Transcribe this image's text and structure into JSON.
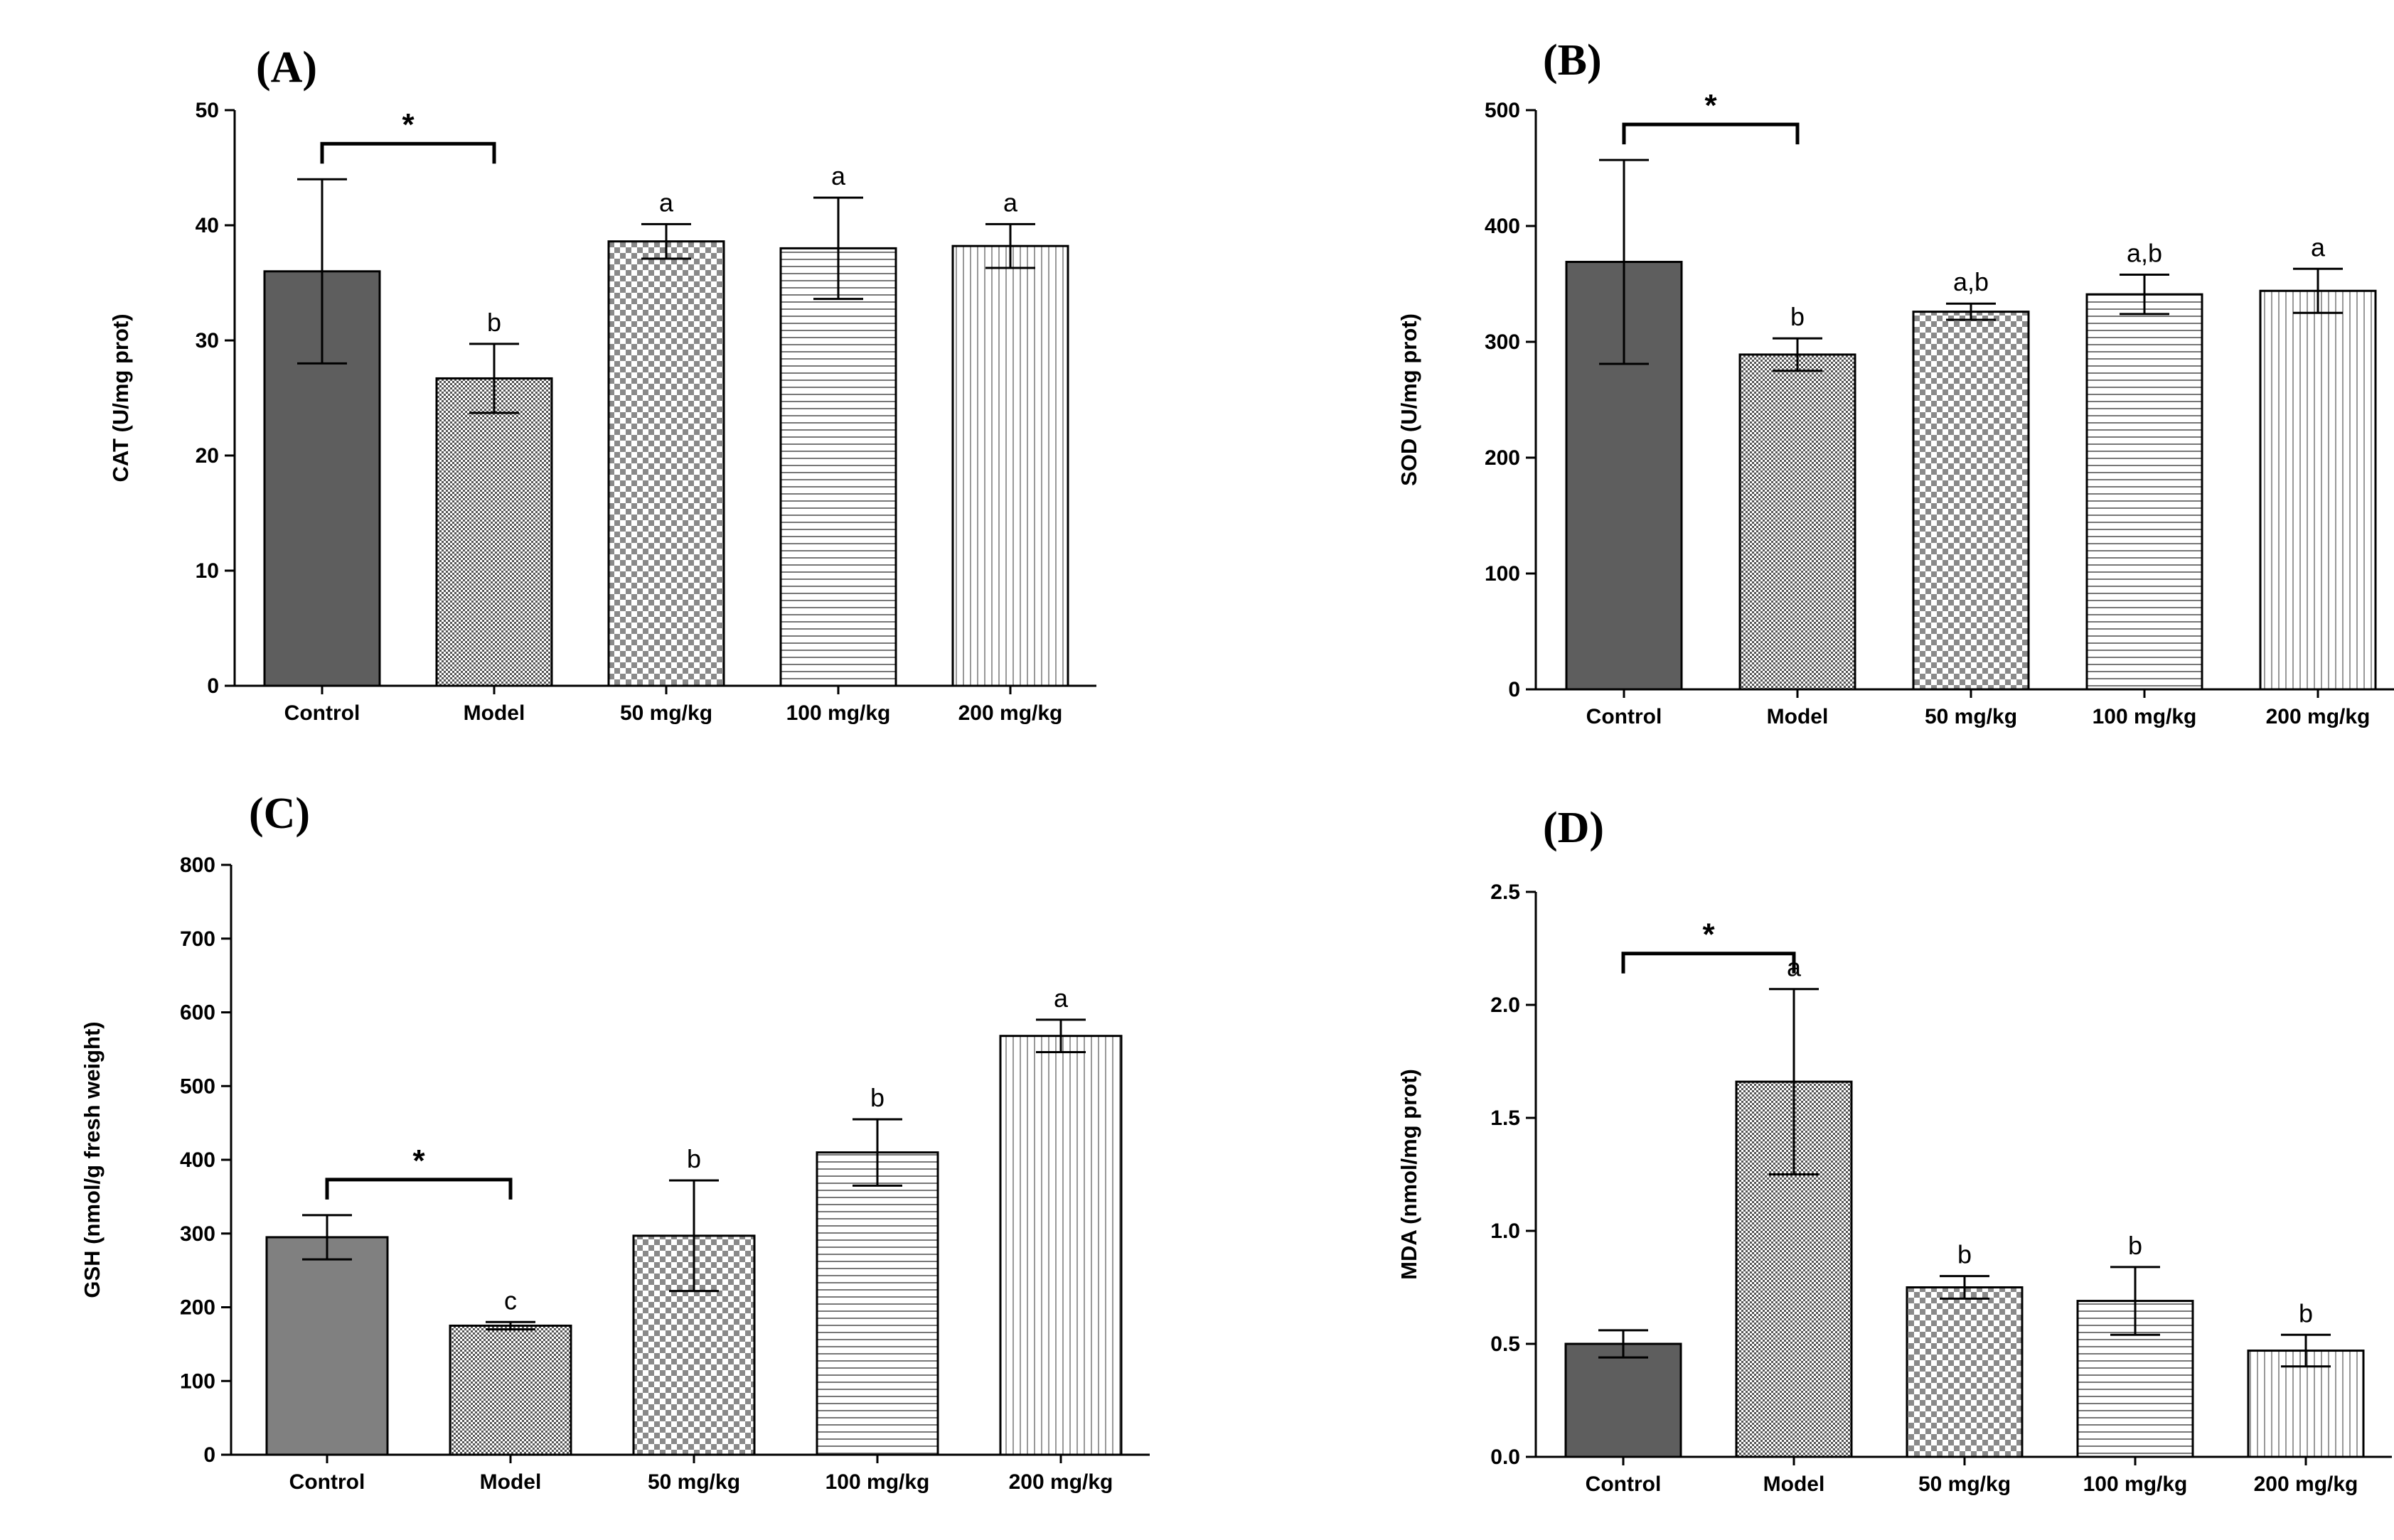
{
  "chart_data": [
    {
      "panel": "(A)",
      "type": "bar",
      "ylabel": "CAT (U/mg prot)",
      "categories": [
        "Control",
        "Model",
        "50 mg/kg",
        "100 mg/kg",
        "200 mg/kg"
      ],
      "values": [
        36,
        26.7,
        38.6,
        38,
        38.2
      ],
      "errors": [
        8,
        3,
        1.5,
        4.4,
        1.9
      ],
      "significance": [
        "",
        "b",
        "a",
        "a",
        "a"
      ],
      "comparison": {
        "from": 0,
        "to": 1,
        "label": "*"
      },
      "ylim": [
        0,
        50
      ],
      "yticks": [
        0,
        10,
        20,
        30,
        40,
        50
      ],
      "colors": {
        "control_fill": "#5e5e5e"
      }
    },
    {
      "panel": "(B)",
      "type": "bar",
      "ylabel": "SOD (U/mg prot)",
      "categories": [
        "Control",
        "Model",
        "50 mg/kg",
        "100 mg/kg",
        "200 mg/kg"
      ],
      "values": [
        369,
        289,
        326,
        341,
        344
      ],
      "errors": [
        88,
        14,
        7,
        17,
        19
      ],
      "significance": [
        "",
        "b",
        "a,b",
        "a,b",
        "a"
      ],
      "comparison": {
        "from": 0,
        "to": 1,
        "label": "*"
      },
      "ylim": [
        0,
        500
      ],
      "yticks": [
        0,
        100,
        200,
        300,
        400,
        500
      ],
      "colors": {
        "control_fill": "#5e5e5e"
      }
    },
    {
      "panel": "(C)",
      "type": "bar",
      "ylabel": "GSH (nmol/g fresh weight)",
      "categories": [
        "Control",
        "Model",
        "50 mg/kg",
        "100 mg/kg",
        "200 mg/kg"
      ],
      "values": [
        295,
        175,
        297,
        410,
        568
      ],
      "errors": [
        30,
        5,
        75,
        45,
        22
      ],
      "significance": [
        "",
        "c",
        "b",
        "b",
        "a"
      ],
      "comparison": {
        "from": 0,
        "to": 1,
        "label": "*"
      },
      "ylim": [
        0,
        800
      ],
      "yticks": [
        0,
        100,
        200,
        300,
        400,
        500,
        600,
        700,
        800
      ],
      "colors": {
        "control_fill": "#808080"
      }
    },
    {
      "panel": "(D)",
      "type": "bar",
      "ylabel": "MDA (nmol/mg prot)",
      "categories": [
        "Control",
        "Model",
        "50 mg/kg",
        "100 mg/kg",
        "200 mg/kg"
      ],
      "values": [
        0.5,
        1.66,
        0.75,
        0.69,
        0.47
      ],
      "errors": [
        0.06,
        0.41,
        0.05,
        0.15,
        0.07
      ],
      "significance": [
        "",
        "a",
        "b",
        "b",
        "b"
      ],
      "comparison": {
        "from": 0,
        "to": 1,
        "label": "*"
      },
      "ylim": [
        0,
        2.5
      ],
      "yticks": [
        "0.0",
        "0.5",
        "1.0",
        "1.5",
        "2.0",
        "2.5"
      ],
      "colors": {
        "control_fill": "#5e5e5e"
      }
    }
  ]
}
